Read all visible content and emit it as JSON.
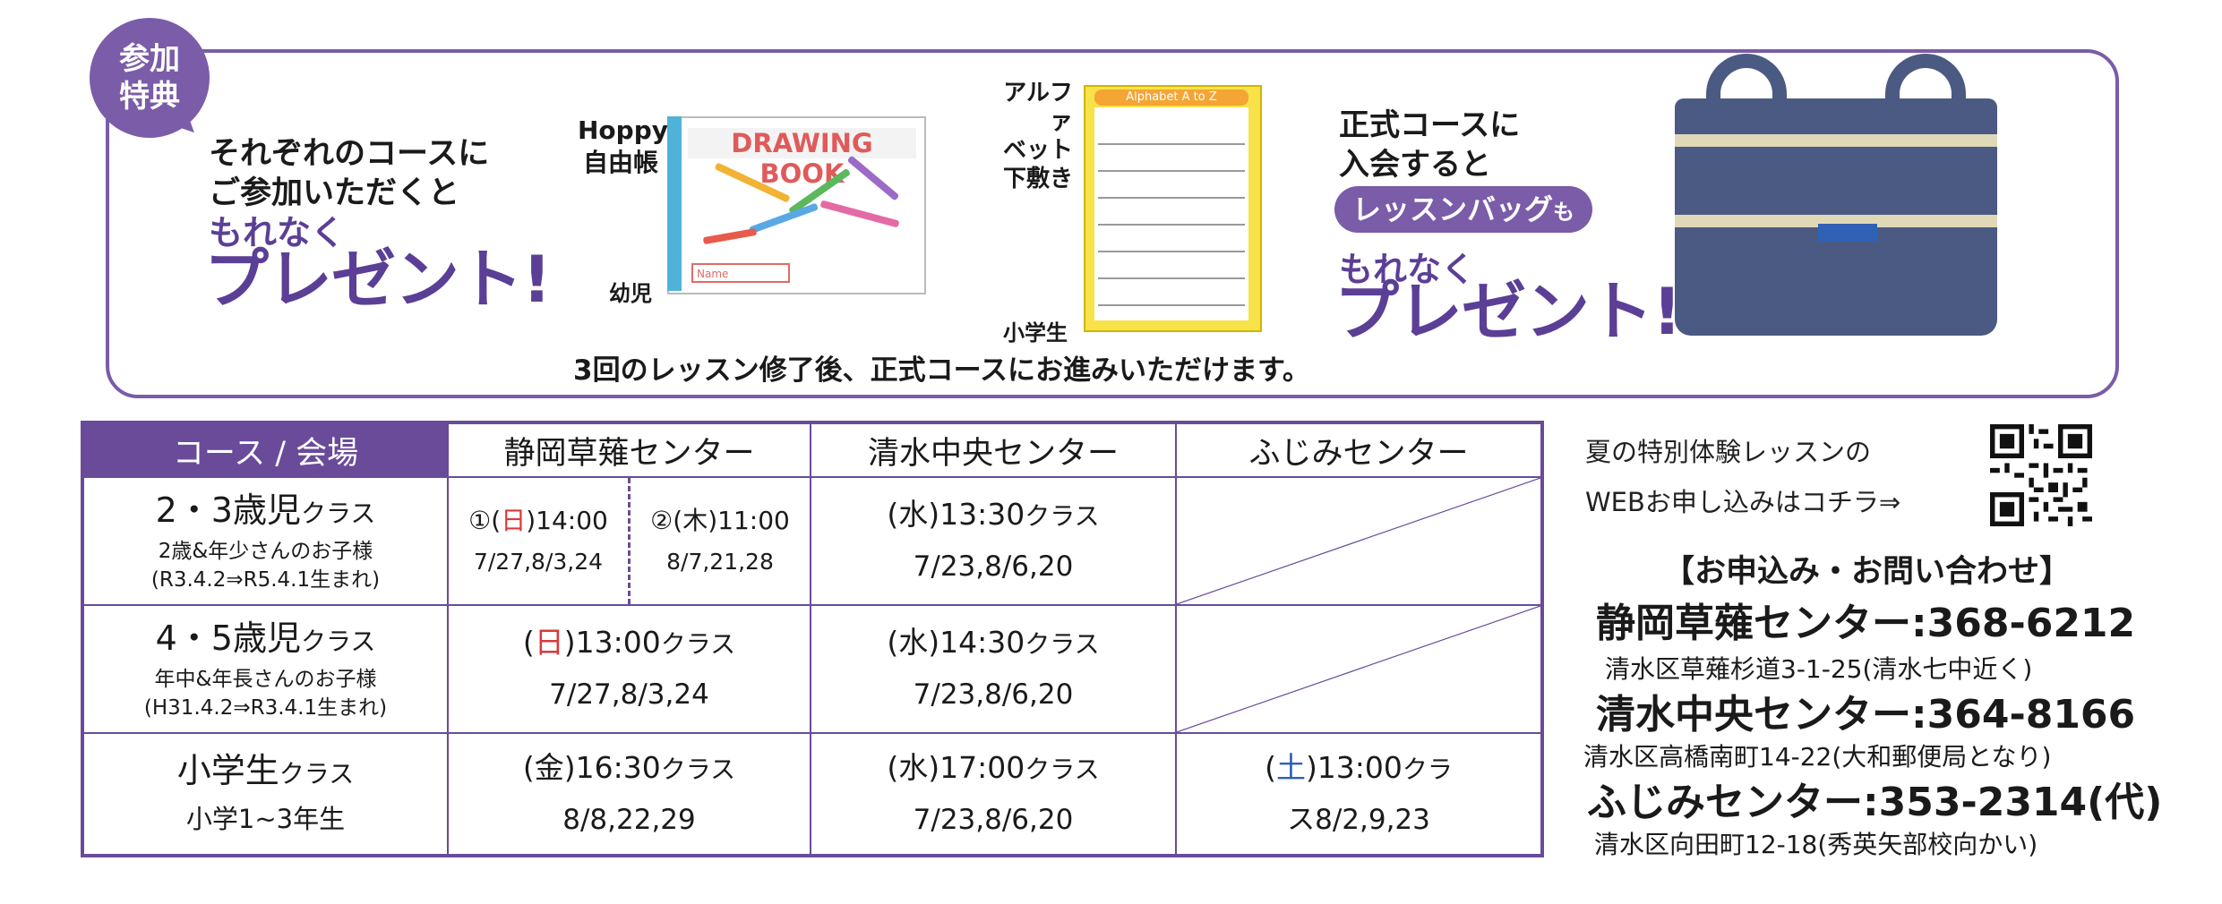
{
  "badge": {
    "line1": "参加",
    "line2": "特典"
  },
  "benefits": {
    "left": {
      "line1": "それぞれのコースに",
      "line2": "ご参加いただくと",
      "line3": "もれなく",
      "present": "プレゼント!"
    },
    "book": {
      "label1": "Hoppy",
      "label2": "自由帳",
      "cover_title": "DRAWING BOOK",
      "age": "幼児",
      "name_field": "Name"
    },
    "mat": {
      "label1": "アルファ",
      "label2": "ベット",
      "label3": "下敷き",
      "header": "Alphabet A to Z",
      "age": "小学生"
    },
    "note": "3回のレッスン修了後、正式コースにお進みいただけます。",
    "right": {
      "line1": "正式コースに",
      "line2": "入会すると",
      "pill_main": "レッスンバッグ",
      "pill_suffix": "も",
      "line3": "もれなく",
      "present": "プレゼント!"
    }
  },
  "table": {
    "headers": [
      "コース / 会場",
      "静岡草薙センター",
      "清水中央センター",
      "ふじみセンター"
    ],
    "rows": [
      {
        "course_title": "2・3歳児",
        "course_suffix": "クラス",
        "sub1": "2歳&年少さんのお子様",
        "sub2": "(R3.4.2⇒R5.4.1生まれ)",
        "kusanagi_a": {
          "mark": "①(",
          "day": "日",
          "close": ")14:00",
          "dates": "7/27,8/3,24"
        },
        "kusanagi_b": {
          "mark": "②(",
          "day": "木",
          "close": ")11:00",
          "dates": "8/7,21,28"
        },
        "shimizu": {
          "open": "(",
          "day": "水",
          "time": ")13:30",
          "suffix": "クラス",
          "dates": "7/23,8/6,20"
        }
      },
      {
        "course_title": "4・5歳児",
        "course_suffix": "クラス",
        "sub1": "年中&年長さんのお子様",
        "sub2": "(H31.4.2⇒R3.4.1生まれ)",
        "kusanagi": {
          "open": "(",
          "day": "日",
          "time": ")13:00",
          "suffix": "クラス",
          "dates": "7/27,8/3,24"
        },
        "shimizu": {
          "open": "(",
          "day": "水",
          "time": ")14:30",
          "suffix": "クラス",
          "dates": "7/23,8/6,20"
        }
      },
      {
        "course_title": "小学生",
        "course_suffix": "クラス",
        "sub1": "小学1~3年生",
        "kusanagi": {
          "open": "(",
          "day": "金",
          "time": ")16:30",
          "suffix": "クラス",
          "dates": "8/8,22,29"
        },
        "shimizu": {
          "open": "(",
          "day": "水",
          "time": ")17:00",
          "suffix": "クラス",
          "dates": "7/23,8/6,20"
        },
        "fujimi": {
          "open": "(",
          "day": "土",
          "time": ")13:00",
          "suffix": "クラ",
          "dates": "ス8/2,9,23"
        }
      }
    ]
  },
  "contact": {
    "web_line1": "夏の特別体験レッスンの",
    "web_line2": "WEBお申し込みはコチラ⇒",
    "heading": "【お申込み・お問い合わせ】",
    "centers": [
      {
        "name_tel": "静岡草薙センター:368-6212",
        "address": "清水区草薙杉道3-1-25(清水七中近く)"
      },
      {
        "name_tel": "清水中央センター:364-8166",
        "address": "清水区高橋南町14-22(大和郵便局となり)"
      },
      {
        "name_tel": "ふじみセンター:353-2314(代)",
        "address": "清水区向田町12-18(秀英矢部校向かい)"
      }
    ]
  },
  "colors": {
    "purple": "#6a4b9a",
    "purple_text": "#5b3f96",
    "sunday_red": "#d93a3a",
    "saturday_blue": "#2f5fb5"
  }
}
